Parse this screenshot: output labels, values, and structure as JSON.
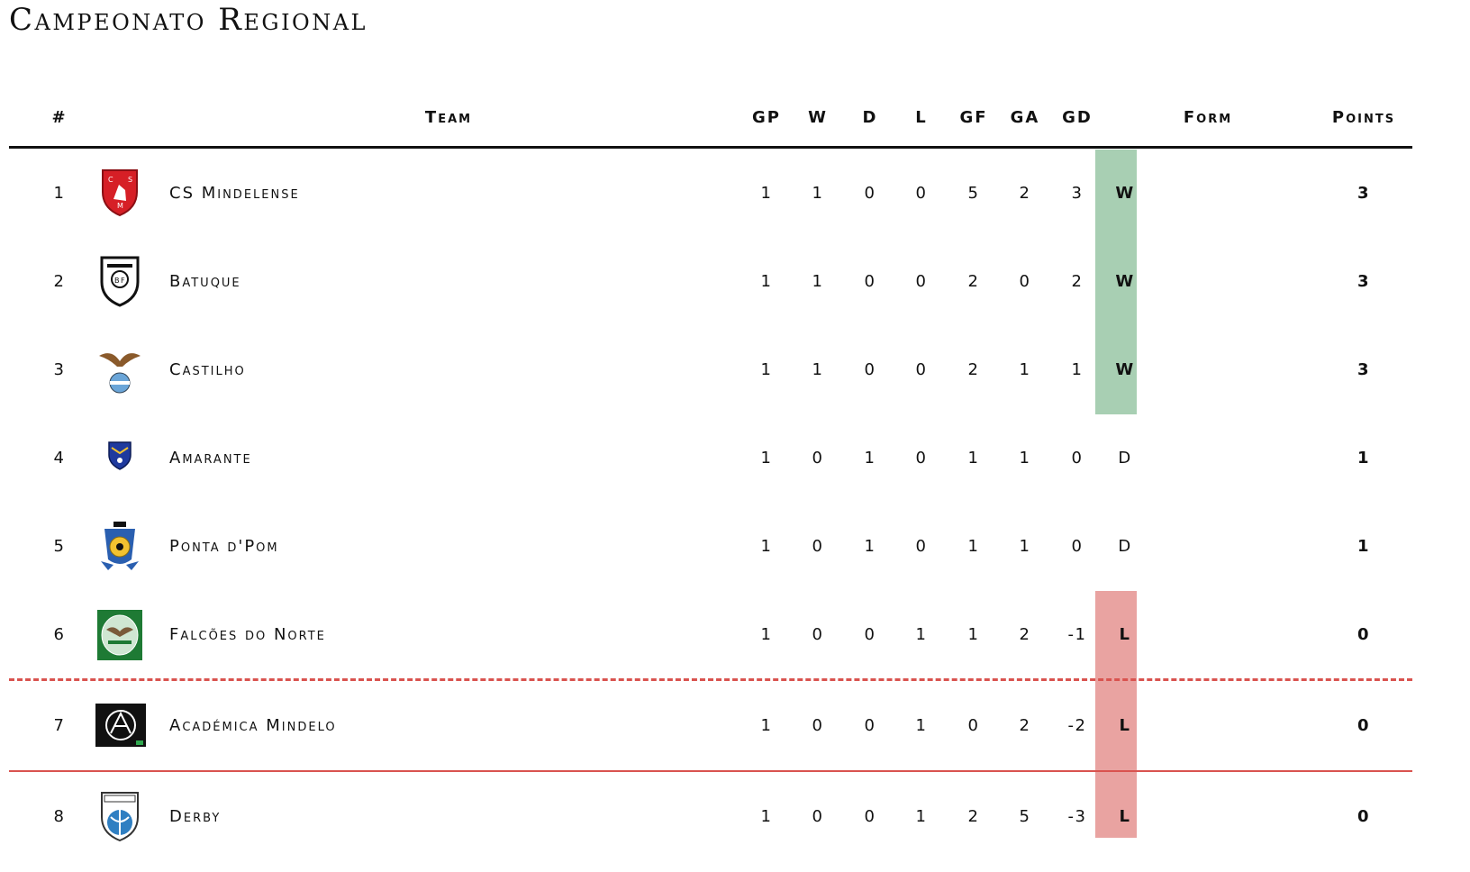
{
  "title": "Campeonato Regional",
  "columns": {
    "rank": "#",
    "team": "Team",
    "gp": "GP",
    "w": "W",
    "d": "D",
    "l": "L",
    "gf": "GF",
    "ga": "GA",
    "gd": "GD",
    "form": "Form",
    "points": "Points"
  },
  "colors": {
    "win": "#a8cfb3",
    "loss": "#e9a3a1",
    "relegation_line": "#d9534f"
  },
  "rows": [
    {
      "rank": "1",
      "team": "CS Mindelense",
      "crest": "cs-mindelense-crest",
      "gp": "1",
      "w": "1",
      "d": "0",
      "l": "0",
      "gf": "5",
      "ga": "2",
      "gd": "3",
      "form": "W",
      "points": "3"
    },
    {
      "rank": "2",
      "team": "Batuque",
      "crest": "batuque-crest",
      "gp": "1",
      "w": "1",
      "d": "0",
      "l": "0",
      "gf": "2",
      "ga": "0",
      "gd": "2",
      "form": "W",
      "points": "3"
    },
    {
      "rank": "3",
      "team": "Castilho",
      "crest": "castilho-crest",
      "gp": "1",
      "w": "1",
      "d": "0",
      "l": "0",
      "gf": "2",
      "ga": "1",
      "gd": "1",
      "form": "W",
      "points": "3"
    },
    {
      "rank": "4",
      "team": "Amarante",
      "crest": "amarante-crest",
      "gp": "1",
      "w": "0",
      "d": "1",
      "l": "0",
      "gf": "1",
      "ga": "1",
      "gd": "0",
      "form": "D",
      "points": "1"
    },
    {
      "rank": "5",
      "team": "Ponta d'Pom",
      "crest": "ponta-dpom-crest",
      "gp": "1",
      "w": "0",
      "d": "1",
      "l": "0",
      "gf": "1",
      "ga": "1",
      "gd": "0",
      "form": "D",
      "points": "1"
    },
    {
      "rank": "6",
      "team": "Falcões do Norte",
      "crest": "falcoes-do-norte-crest",
      "gp": "1",
      "w": "0",
      "d": "0",
      "l": "1",
      "gf": "1",
      "ga": "2",
      "gd": "-1",
      "form": "L",
      "points": "0"
    },
    {
      "rank": "7",
      "team": "Académica Mindelo",
      "crest": "academica-mindelo-crest",
      "gp": "1",
      "w": "0",
      "d": "0",
      "l": "1",
      "gf": "0",
      "ga": "2",
      "gd": "-2",
      "form": "L",
      "points": "0"
    },
    {
      "rank": "8",
      "team": "Derby",
      "crest": "derby-crest",
      "gp": "1",
      "w": "0",
      "d": "0",
      "l": "1",
      "gf": "2",
      "ga": "5",
      "gd": "-3",
      "form": "L",
      "points": "0"
    }
  ]
}
